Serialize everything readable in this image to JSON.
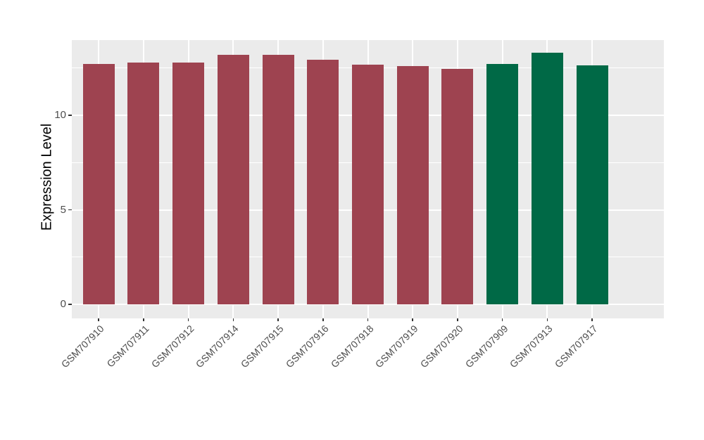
{
  "chart_data": {
    "type": "bar",
    "title": "",
    "xlabel": "",
    "ylabel": "Expression Level",
    "categories": [
      "GSM707910",
      "GSM707911",
      "GSM707912",
      "GSM707914",
      "GSM707915",
      "GSM707916",
      "GSM707918",
      "GSM707919",
      "GSM707920",
      "GSM707909",
      "GSM707913",
      "GSM707917"
    ],
    "values": [
      12.7,
      12.8,
      12.8,
      13.2,
      13.2,
      12.95,
      12.68,
      12.62,
      12.47,
      12.73,
      13.32,
      12.65
    ],
    "bar_groups": [
      "maroon",
      "maroon",
      "maroon",
      "maroon",
      "maroon",
      "maroon",
      "maroon",
      "maroon",
      "maroon",
      "green",
      "green",
      "green"
    ],
    "palette": {
      "maroon": "#9E4350",
      "green": "#006946"
    },
    "ylim": [
      0,
      13.98
    ],
    "yticks": [
      0,
      5,
      10
    ],
    "yticks_minor": [
      2.5,
      7.5,
      12.5
    ],
    "grid": "on",
    "legend": "none",
    "panel_bg": "#EBEBEB",
    "grid_color": "#FFFFFF",
    "axis_text_color": "#4D4D4D",
    "tick_color": "#333333"
  }
}
